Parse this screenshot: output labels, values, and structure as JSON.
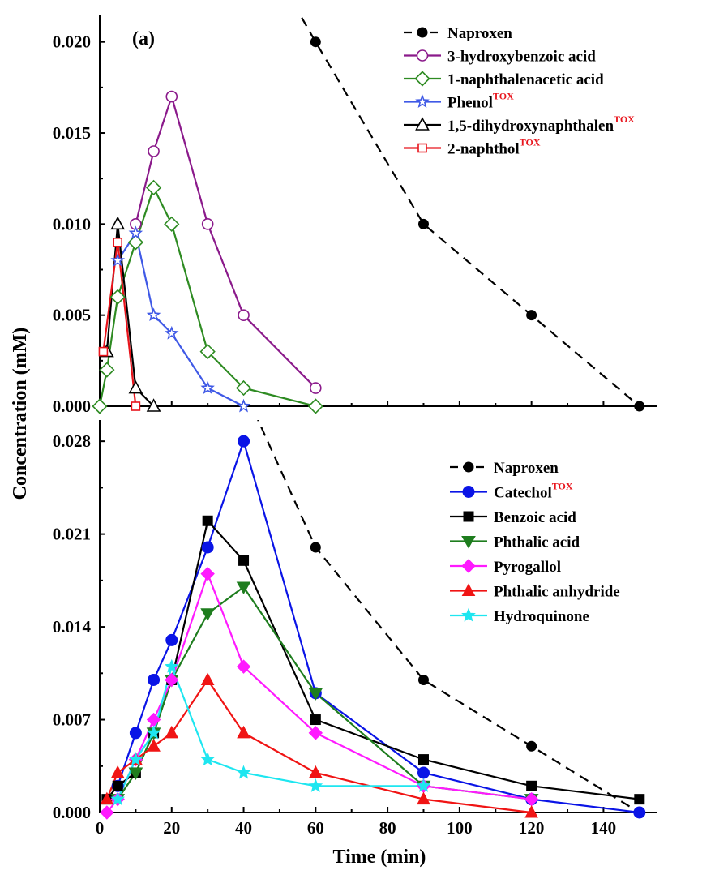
{
  "chart_data": [
    {
      "type": "line",
      "panel_label": "(a)",
      "ylabel": "Concentration (mM)",
      "ylim": [
        0,
        0.0215
      ],
      "xlim": [
        0,
        155
      ],
      "y_ticks": [
        "0.000",
        "0.005",
        "0.010",
        "0.015",
        "0.020"
      ],
      "legend_position": "top-right",
      "series": [
        {
          "name": "Naproxen",
          "color": "#000000",
          "dashed": true,
          "marker": "filled-circle",
          "points": [
            [
              45,
              0.0252
            ],
            [
              60,
              0.02
            ],
            [
              90,
              0.01
            ],
            [
              120,
              0.005
            ],
            [
              150,
              0.0
            ]
          ]
        },
        {
          "name": "3-hydroxybenzoic acid",
          "color": "#8b1a8b",
          "marker": "open-circle",
          "points": [
            [
              10,
              0.01
            ],
            [
              15,
              0.014
            ],
            [
              20,
              0.017
            ],
            [
              30,
              0.01
            ],
            [
              40,
              0.005
            ],
            [
              60,
              0.001
            ]
          ]
        },
        {
          "name": "1-naphthalenacetic acid",
          "color": "#2e8b22",
          "marker": "open-diamond",
          "points": [
            [
              0,
              0.0
            ],
            [
              2,
              0.002
            ],
            [
              5,
              0.006
            ],
            [
              10,
              0.009
            ],
            [
              15,
              0.012
            ],
            [
              20,
              0.01
            ],
            [
              30,
              0.003
            ],
            [
              40,
              0.001
            ],
            [
              60,
              0.0
            ]
          ]
        },
        {
          "name": "Phenol",
          "sup": "TOX",
          "color": "#3f59e6",
          "marker": "open-star",
          "points": [
            [
              5,
              0.008
            ],
            [
              10,
              0.0095
            ],
            [
              15,
              0.005
            ],
            [
              20,
              0.004
            ],
            [
              30,
              0.001
            ],
            [
              40,
              0.0
            ]
          ]
        },
        {
          "name": "1,5-dihydroxynaphthalen",
          "sup": "TOX",
          "color": "#000000",
          "marker": "open-triangle",
          "points": [
            [
              2,
              0.003
            ],
            [
              5,
              0.01
            ],
            [
              10,
              0.001
            ],
            [
              15,
              0.0
            ]
          ]
        },
        {
          "name": "2-naphthol",
          "sup": "TOX",
          "color": "#e8141c",
          "marker": "open-square",
          "points": [
            [
              1,
              0.003
            ],
            [
              5,
              0.009
            ],
            [
              10,
              0.0
            ]
          ]
        }
      ]
    },
    {
      "type": "line",
      "xlabel": "Time (min)",
      "ylabel": "Concentration (mM)",
      "ylim": [
        0,
        0.0296
      ],
      "xlim": [
        0,
        155
      ],
      "x_ticks": [
        "0",
        "20",
        "40",
        "60",
        "80",
        "100",
        "120",
        "140"
      ],
      "y_ticks": [
        "0.000",
        "0.007",
        "0.014",
        "0.021",
        "0.028"
      ],
      "legend_position": "top-right",
      "series": [
        {
          "name": "Naproxen",
          "color": "#000000",
          "dashed": true,
          "marker": "filled-circle",
          "points": [
            [
              43,
              0.0302
            ],
            [
              60,
              0.02
            ],
            [
              90,
              0.01
            ],
            [
              120,
              0.005
            ],
            [
              150,
              0.0
            ]
          ]
        },
        {
          "name": "Catechol",
          "sup": "TOX",
          "color": "#0a14e6",
          "marker": "filled-circle",
          "points": [
            [
              5,
              0.002
            ],
            [
              10,
              0.006
            ],
            [
              15,
              0.01
            ],
            [
              20,
              0.013
            ],
            [
              30,
              0.02
            ],
            [
              40,
              0.028
            ],
            [
              60,
              0.009
            ],
            [
              90,
              0.003
            ],
            [
              120,
              0.001
            ],
            [
              150,
              0.0
            ]
          ]
        },
        {
          "name": "Benzoic acid",
          "color": "#000000",
          "marker": "filled-square",
          "points": [
            [
              2,
              0.001
            ],
            [
              5,
              0.002
            ],
            [
              10,
              0.003
            ],
            [
              15,
              0.006
            ],
            [
              20,
              0.01
            ],
            [
              30,
              0.022
            ],
            [
              40,
              0.019
            ],
            [
              60,
              0.007
            ],
            [
              90,
              0.004
            ],
            [
              120,
              0.002
            ],
            [
              150,
              0.001
            ]
          ]
        },
        {
          "name": "Phthalic acid",
          "color": "#1e7d1e",
          "marker": "filled-triangle-down",
          "points": [
            [
              5,
              0.001
            ],
            [
              10,
              0.003
            ],
            [
              15,
              0.006
            ],
            [
              20,
              0.01
            ],
            [
              30,
              0.015
            ],
            [
              40,
              0.017
            ],
            [
              60,
              0.009
            ],
            [
              90,
              0.002
            ],
            [
              120,
              0.001
            ]
          ]
        },
        {
          "name": "Pyrogallol",
          "color": "#ff1aff",
          "marker": "filled-diamond",
          "points": [
            [
              2,
              0.0
            ],
            [
              5,
              0.001
            ],
            [
              10,
              0.004
            ],
            [
              15,
              0.007
            ],
            [
              20,
              0.01
            ],
            [
              30,
              0.018
            ],
            [
              40,
              0.011
            ],
            [
              60,
              0.006
            ],
            [
              90,
              0.002
            ],
            [
              120,
              0.001
            ]
          ]
        },
        {
          "name": "Phthalic anhydride",
          "color": "#f01414",
          "marker": "filled-triangle",
          "points": [
            [
              2,
              0.001
            ],
            [
              5,
              0.003
            ],
            [
              10,
              0.004
            ],
            [
              15,
              0.005
            ],
            [
              20,
              0.006
            ],
            [
              30,
              0.01
            ],
            [
              40,
              0.006
            ],
            [
              60,
              0.003
            ],
            [
              90,
              0.001
            ],
            [
              120,
              0.0
            ]
          ]
        },
        {
          "name": "Hydroquinone",
          "color": "#1ee6f0",
          "marker": "filled-star",
          "points": [
            [
              5,
              0.001
            ],
            [
              10,
              0.004
            ],
            [
              15,
              0.006
            ],
            [
              20,
              0.011
            ],
            [
              30,
              0.004
            ],
            [
              40,
              0.003
            ],
            [
              60,
              0.002
            ],
            [
              90,
              0.002
            ]
          ]
        }
      ]
    }
  ]
}
